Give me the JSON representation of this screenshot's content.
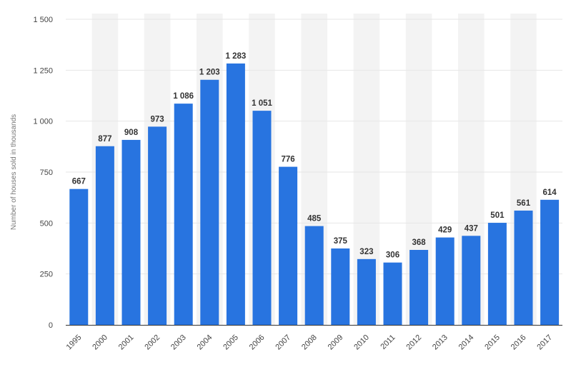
{
  "chart_data": {
    "type": "bar",
    "title": "",
    "xlabel": "",
    "ylabel": "Number of houses sold in thousands",
    "categories": [
      "1995",
      "2000",
      "2001",
      "2002",
      "2003",
      "2004",
      "2005",
      "2006",
      "2007",
      "2008",
      "2009",
      "2010",
      "2011",
      "2012",
      "2013",
      "2014",
      "2015",
      "2016",
      "2017"
    ],
    "values": [
      667,
      877,
      908,
      973,
      1086,
      1203,
      1283,
      1051,
      776,
      485,
      375,
      323,
      306,
      368,
      429,
      437,
      501,
      561,
      614
    ],
    "value_labels": [
      "667",
      "877",
      "908",
      "973",
      "1 086",
      "1 203",
      "1 283",
      "1 051",
      "776",
      "485",
      "375",
      "323",
      "306",
      "368",
      "429",
      "437",
      "501",
      "561",
      "614"
    ],
    "yticks": [
      0,
      250,
      500,
      750,
      1000,
      1250,
      1500
    ],
    "ytick_labels": [
      "0",
      "250",
      "500",
      "750",
      "1 000",
      "1 250",
      "1 500"
    ],
    "ylim": [
      0,
      1500
    ],
    "grid": true,
    "alternating_column_shading": true,
    "colors": {
      "bar": "#2874e0",
      "band": "#f3f3f3",
      "grid": "#e6e6e6"
    }
  }
}
